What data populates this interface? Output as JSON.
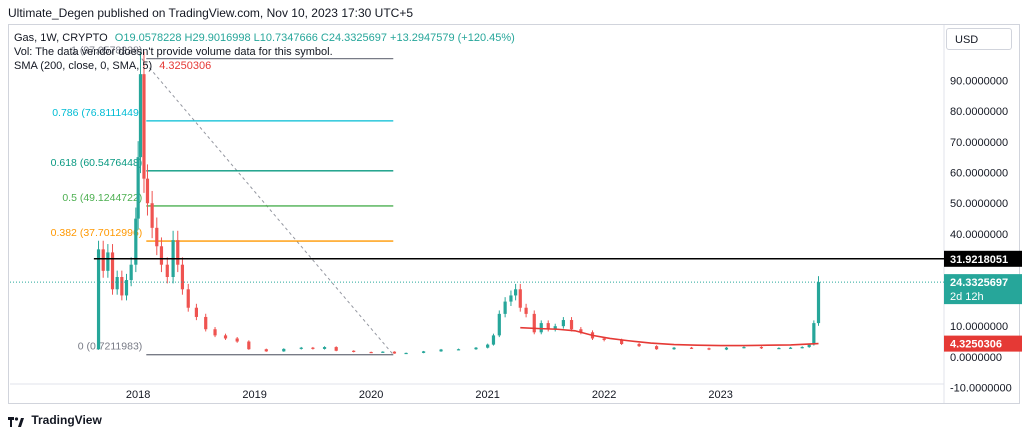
{
  "header": {
    "publisher_text": "Ultimate_Degen published on TradingView.com, Nov 10, 2023 17:30 UTC+5"
  },
  "legend": {
    "symbol": "Gas, 1W, CRYPTO",
    "ohlc": "O19.0578228 H29.9016998 L10.7347666 C24.3325697 +13.2947579 (+120.45%)",
    "volume_note": "Vol: The data vendor doesn't provide volume data for this symbol.",
    "sma_label": "SMA (200, close, 0, SMA, 5)",
    "sma_value": "4.3250306"
  },
  "currency_button": "USD",
  "brand": {
    "name": "TradingView",
    "logo_icon": "tradingview-logo-icon"
  },
  "colors": {
    "up": "#26a69a",
    "down": "#ef5350",
    "sma": "#e53935",
    "resistance": "#000000",
    "fib_1": "#787b86",
    "fib_0786": "#00bcd4",
    "fib_0618": "#089981",
    "fib_05": "#4caf50",
    "fib_0382": "#ff9800",
    "fib_0": "#787b86",
    "price_badge": "#26a69a",
    "sma_badge": "#e53935"
  },
  "chart_data": {
    "type": "line",
    "title": "Gas, 1W, CRYPTO",
    "x_tick_labels": [
      "2018",
      "2019",
      "2020",
      "2021",
      "2022",
      "2023"
    ],
    "x_ticks": [
      2018.0,
      2019.0,
      2020.0,
      2021.0,
      2022.0,
      2023.0
    ],
    "xlim": [
      2016.9,
      2024.9
    ],
    "ylim": [
      -15,
      108
    ],
    "y_tick_labels": [
      "90.0000000",
      "80.0000000",
      "70.0000000",
      "60.0000000",
      "50.0000000",
      "40.0000000",
      "10.0000000",
      "0.0000000",
      "-10.0000000"
    ],
    "y_ticks": [
      90,
      80,
      70,
      60,
      50,
      40,
      10,
      0,
      -10
    ],
    "series": [
      {
        "name": "Gas",
        "points": [
          [
            2017.62,
            2.5
          ],
          [
            2017.66,
            35
          ],
          [
            2017.7,
            28
          ],
          [
            2017.74,
            34
          ],
          [
            2017.78,
            22
          ],
          [
            2017.82,
            26
          ],
          [
            2017.86,
            20
          ],
          [
            2017.9,
            25
          ],
          [
            2017.94,
            30
          ],
          [
            2017.98,
            45
          ],
          [
            2018.0,
            65
          ],
          [
            2018.02,
            92
          ],
          [
            2018.05,
            58
          ],
          [
            2018.08,
            50
          ],
          [
            2018.12,
            42
          ],
          [
            2018.16,
            36
          ],
          [
            2018.2,
            30
          ],
          [
            2018.25,
            26
          ],
          [
            2018.3,
            38
          ],
          [
            2018.34,
            30
          ],
          [
            2018.38,
            22
          ],
          [
            2018.43,
            16
          ],
          [
            2018.5,
            13
          ],
          [
            2018.58,
            9
          ],
          [
            2018.66,
            7
          ],
          [
            2018.75,
            6
          ],
          [
            2018.85,
            5
          ],
          [
            2018.95,
            2.5
          ],
          [
            2019.1,
            1.8
          ],
          [
            2019.25,
            2.6
          ],
          [
            2019.4,
            3.0
          ],
          [
            2019.5,
            2.6
          ],
          [
            2019.6,
            3.2
          ],
          [
            2019.7,
            2.0
          ],
          [
            2019.85,
            1.6
          ],
          [
            2020.0,
            1.5
          ],
          [
            2020.1,
            1.7
          ],
          [
            2020.2,
            1.1
          ],
          [
            2020.3,
            1.3
          ],
          [
            2020.45,
            1.8
          ],
          [
            2020.6,
            2.4
          ],
          [
            2020.75,
            2.5
          ],
          [
            2020.9,
            3.0
          ],
          [
            2021.0,
            4.0
          ],
          [
            2021.05,
            7
          ],
          [
            2021.1,
            14
          ],
          [
            2021.15,
            18
          ],
          [
            2021.2,
            20
          ],
          [
            2021.24,
            22
          ],
          [
            2021.28,
            16
          ],
          [
            2021.33,
            14
          ],
          [
            2021.4,
            8
          ],
          [
            2021.46,
            11
          ],
          [
            2021.52,
            9
          ],
          [
            2021.58,
            10
          ],
          [
            2021.65,
            12
          ],
          [
            2021.72,
            9
          ],
          [
            2021.8,
            8
          ],
          [
            2021.9,
            6
          ],
          [
            2022.0,
            5.5
          ],
          [
            2022.15,
            4.2
          ],
          [
            2022.3,
            3.5
          ],
          [
            2022.45,
            2.5
          ],
          [
            2022.6,
            3.0
          ],
          [
            2022.75,
            2.8
          ],
          [
            2022.9,
            2.4
          ],
          [
            2023.05,
            3.0
          ],
          [
            2023.2,
            3.2
          ],
          [
            2023.35,
            2.8
          ],
          [
            2023.5,
            2.9
          ],
          [
            2023.6,
            3.0
          ],
          [
            2023.7,
            3.2
          ],
          [
            2023.76,
            4
          ],
          [
            2023.8,
            11
          ],
          [
            2023.84,
            24.3325697
          ]
        ]
      },
      {
        "name": "SMA (200, close, 0, SMA, 5)",
        "points": [
          [
            2021.28,
            9.5
          ],
          [
            2021.45,
            9.2
          ],
          [
            2021.6,
            9.0
          ],
          [
            2021.75,
            8.5
          ],
          [
            2021.9,
            7.0
          ],
          [
            2022.05,
            6.0
          ],
          [
            2022.2,
            5.3
          ],
          [
            2022.4,
            4.5
          ],
          [
            2022.6,
            4.0
          ],
          [
            2022.8,
            3.8
          ],
          [
            2023.0,
            3.7
          ],
          [
            2023.2,
            3.7
          ],
          [
            2023.4,
            3.8
          ],
          [
            2023.6,
            3.9
          ],
          [
            2023.84,
            4.3250306
          ]
        ]
      }
    ],
    "horizontal_levels": [
      {
        "label": "31.9218051",
        "value": 31.9218051,
        "x_from": 2017.62,
        "x_to": 2024.85,
        "badge": true,
        "color_key": "resistance"
      }
    ],
    "current_price": {
      "value": 24.3325697,
      "label": "24.3325697",
      "countdown": "2d 12h"
    },
    "sma_badge": {
      "value": 4.3250306,
      "label": "4.3250306"
    },
    "fibonacci": {
      "x_from": 2018.07,
      "x_to": 2020.19,
      "levels": [
        {
          "ratio": "1",
          "label": "1 (97.0578228)",
          "value": 97.0578228,
          "color_key": "fib_1"
        },
        {
          "ratio": "0.786",
          "label": "0.786 (76.8111449)",
          "value": 76.8111449,
          "color_key": "fib_0786"
        },
        {
          "ratio": "0.618",
          "label": "0.618 (60.5476448)",
          "value": 60.5476448,
          "color_key": "fib_0618"
        },
        {
          "ratio": "0.5",
          "label": "0.5 (49.1244722)",
          "value": 49.1244722,
          "color_key": "fib_05"
        },
        {
          "ratio": "0.382",
          "label": "0.382 (37.7012996)",
          "value": 37.7012996,
          "color_key": "fib_0382"
        },
        {
          "ratio": "0",
          "label": "0 (0.7211983)",
          "value": 0.7211983,
          "color_key": "fib_0"
        }
      ],
      "trend_line": [
        [
          2018.03,
          97.0578228
        ],
        [
          2020.19,
          0.7211983
        ]
      ]
    }
  }
}
